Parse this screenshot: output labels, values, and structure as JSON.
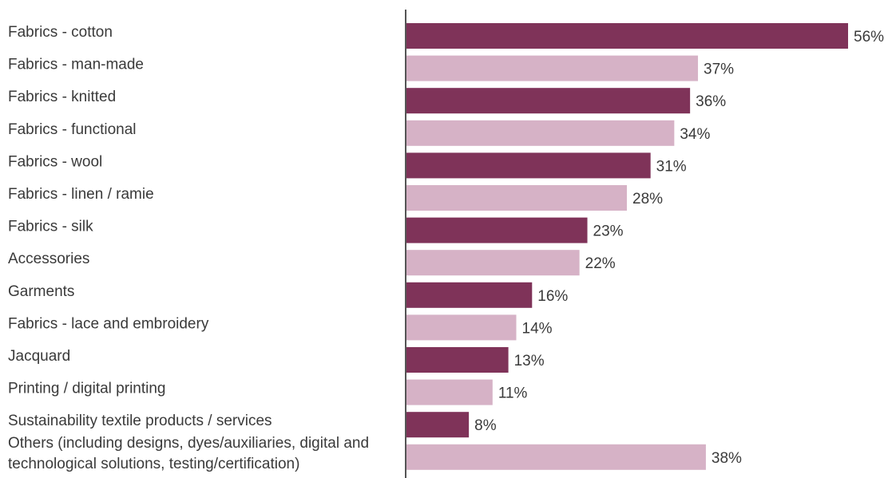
{
  "chart_data": {
    "type": "bar",
    "orientation": "horizontal",
    "categories": [
      "Fabrics - cotton",
      "Fabrics - man-made",
      "Fabrics - knitted",
      "Fabrics - functional",
      "Fabrics - wool",
      "Fabrics - linen / ramie",
      "Fabrics - silk",
      "Accessories",
      "Garments",
      "Fabrics - lace and embroidery",
      "Jacquard",
      "Printing / digital printing",
      "Sustainability textile products / services",
      [
        "Others (including designs, dyes/auxiliaries, digital and",
        "technological solutions, testing/certification)"
      ]
    ],
    "values": [
      56,
      37,
      36,
      34,
      31,
      28,
      23,
      22,
      16,
      14,
      13,
      11,
      8,
      38
    ],
    "value_labels": [
      "56%",
      "37%",
      "36%",
      "34%",
      "31%",
      "28%",
      "23%",
      "22%",
      "16%",
      "14%",
      "13%",
      "11%",
      "8%",
      "38%"
    ],
    "xlim": [
      0,
      56
    ],
    "grid": false,
    "legend": "none",
    "colors": {
      "dark": "#7f3359",
      "light": "#d6b2c6",
      "axis": "#555555",
      "text": "#3a3a3a"
    },
    "bar_color_pattern": [
      "dark",
      "light"
    ]
  }
}
